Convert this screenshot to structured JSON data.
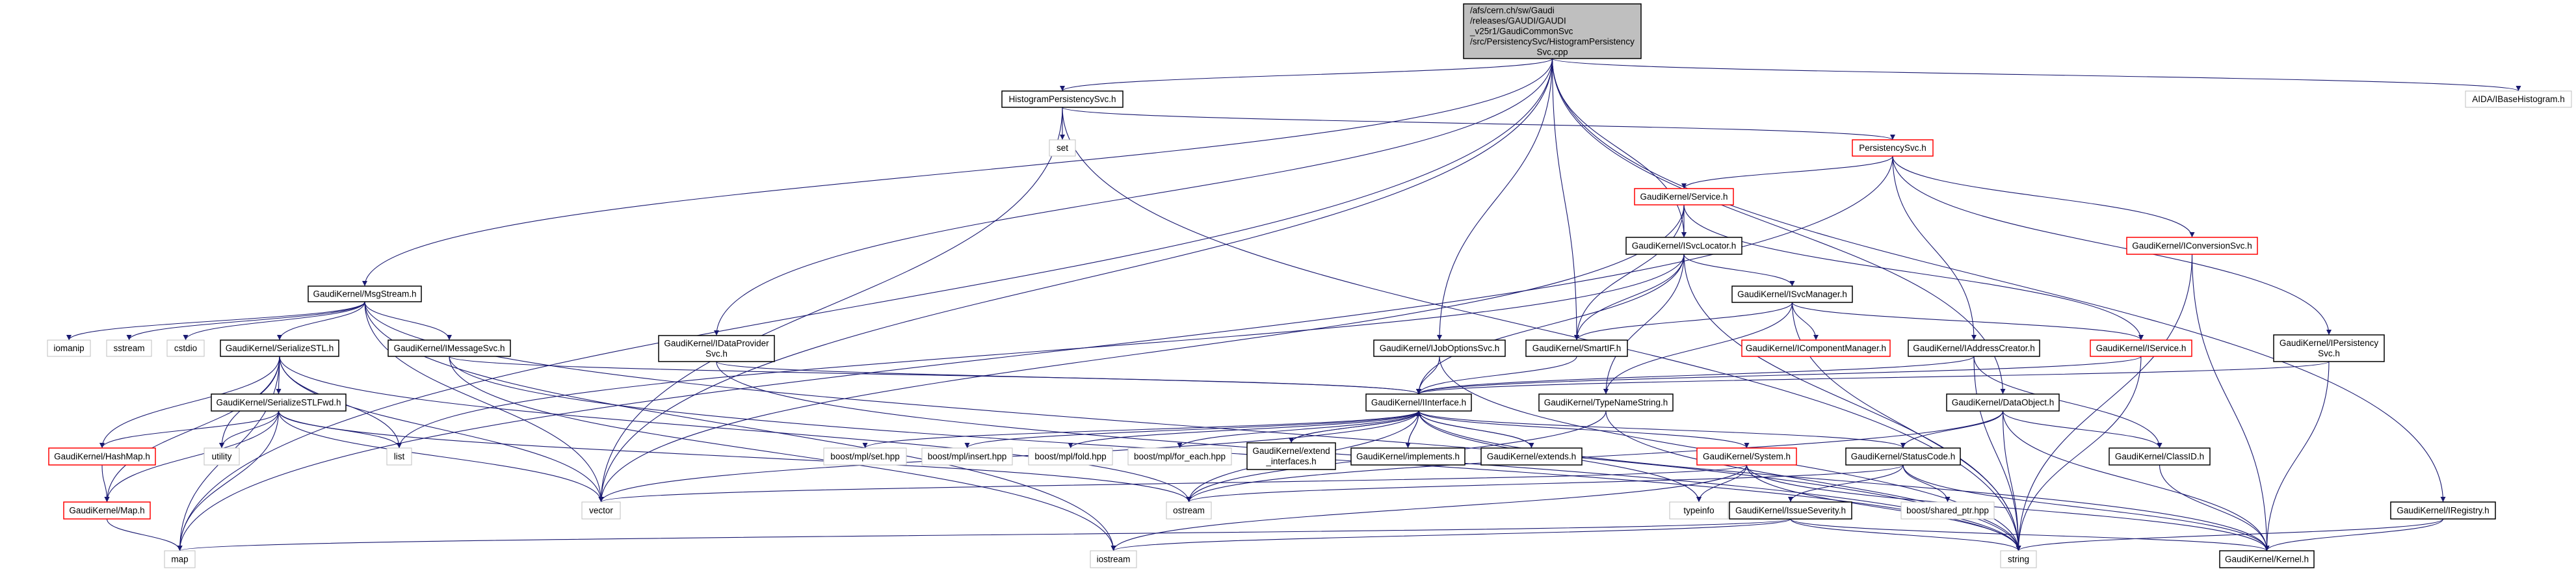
{
  "colors": {
    "edge": "#191970",
    "documented_border": "#000000",
    "external_border": "#bfbfbf",
    "truncated_border": "#ff0000",
    "root_fill": "#bfbfbf"
  },
  "nodes": [
    {
      "id": "root",
      "kind": "root",
      "lines": [
        "/afs/cern.ch/sw/Gaudi",
        "/releases/GAUDI/GAUDI",
        "_v25r1/GaudiCommonSvc",
        "/src/PersistencySvc/HistogramPersistency",
        "Svc.cpp"
      ]
    },
    {
      "id": "hps",
      "kind": "doc",
      "lines": [
        "HistogramPersistencySvc.h"
      ]
    },
    {
      "id": "aida",
      "kind": "ext",
      "lines": [
        "AIDA/IBaseHistogram.h"
      ]
    },
    {
      "id": "set",
      "kind": "ext",
      "lines": [
        "set"
      ]
    },
    {
      "id": "psvc",
      "kind": "trunc",
      "lines": [
        "PersistencySvc.h"
      ]
    },
    {
      "id": "service",
      "kind": "trunc",
      "lines": [
        "GaudiKernel/Service.h"
      ]
    },
    {
      "id": "svcloc",
      "kind": "doc",
      "lines": [
        "GaudiKernel/ISvcLocator.h"
      ]
    },
    {
      "id": "convsvc",
      "kind": "trunc",
      "lines": [
        "GaudiKernel/IConversionSvc.h"
      ]
    },
    {
      "id": "msgstream",
      "kind": "doc",
      "lines": [
        "GaudiKernel/MsgStream.h"
      ]
    },
    {
      "id": "iomanip",
      "kind": "ext",
      "lines": [
        "iomanip"
      ]
    },
    {
      "id": "sstream",
      "kind": "ext",
      "lines": [
        "sstream"
      ]
    },
    {
      "id": "cstdio",
      "kind": "ext",
      "lines": [
        "cstdio"
      ]
    },
    {
      "id": "sstl",
      "kind": "doc",
      "lines": [
        "GaudiKernel/SerializeSTL.h"
      ]
    },
    {
      "id": "imsg",
      "kind": "doc",
      "lines": [
        "GaudiKernel/IMessageSvc.h"
      ]
    },
    {
      "id": "idp",
      "kind": "doc",
      "lines": [
        "GaudiKernel/IDataProvider",
        "Svc.h"
      ]
    },
    {
      "id": "ijob",
      "kind": "doc",
      "lines": [
        "GaudiKernel/IJobOptionsSvc.h"
      ]
    },
    {
      "id": "smartif",
      "kind": "doc",
      "lines": [
        "GaudiKernel/SmartIF.h"
      ]
    },
    {
      "id": "svcmgr",
      "kind": "doc",
      "lines": [
        "GaudiKernel/ISvcManager.h"
      ]
    },
    {
      "id": "icomp",
      "kind": "trunc",
      "lines": [
        "GaudiKernel/IComponentManager.h"
      ]
    },
    {
      "id": "iaddr",
      "kind": "doc",
      "lines": [
        "GaudiKernel/IAddressCreator.h"
      ]
    },
    {
      "id": "iservice",
      "kind": "trunc",
      "lines": [
        "GaudiKernel/IService.h"
      ]
    },
    {
      "id": "ipers",
      "kind": "doc",
      "lines": [
        "GaudiKernel/IPersistency",
        "Svc.h"
      ]
    },
    {
      "id": "sstlfwd",
      "kind": "doc",
      "lines": [
        "GaudiKernel/SerializeSTLFwd.h"
      ]
    },
    {
      "id": "hashmap",
      "kind": "trunc",
      "lines": [
        "GaudiKernel/HashMap.h"
      ]
    },
    {
      "id": "utility",
      "kind": "ext",
      "lines": [
        "utility"
      ]
    },
    {
      "id": "list",
      "kind": "ext",
      "lines": [
        "list"
      ]
    },
    {
      "id": "map_h",
      "kind": "trunc",
      "lines": [
        "GaudiKernel/Map.h"
      ]
    },
    {
      "id": "vector",
      "kind": "ext",
      "lines": [
        "vector"
      ]
    },
    {
      "id": "map",
      "kind": "ext",
      "lines": [
        "map"
      ]
    },
    {
      "id": "iinterface",
      "kind": "doc",
      "lines": [
        "GaudiKernel/IInterface.h"
      ]
    },
    {
      "id": "mplset",
      "kind": "ext",
      "lines": [
        "boost/mpl/set.hpp"
      ]
    },
    {
      "id": "mplinsert",
      "kind": "ext",
      "lines": [
        "boost/mpl/insert.hpp"
      ]
    },
    {
      "id": "mplfold",
      "kind": "ext",
      "lines": [
        "boost/mpl/fold.hpp"
      ]
    },
    {
      "id": "mplforeach",
      "kind": "ext",
      "lines": [
        "boost/mpl/for_each.hpp"
      ]
    },
    {
      "id": "extif",
      "kind": "doc",
      "lines": [
        "GaudiKernel/extend",
        "_interfaces.h"
      ]
    },
    {
      "id": "impl",
      "kind": "doc",
      "lines": [
        "GaudiKernel/implements.h"
      ]
    },
    {
      "id": "extends",
      "kind": "doc",
      "lines": [
        "GaudiKernel/extends.h"
      ]
    },
    {
      "id": "tns",
      "kind": "doc",
      "lines": [
        "GaudiKernel/TypeNameString.h"
      ]
    },
    {
      "id": "dataobj",
      "kind": "doc",
      "lines": [
        "GaudiKernel/DataObject.h"
      ]
    },
    {
      "id": "system",
      "kind": "trunc",
      "lines": [
        "GaudiKernel/System.h"
      ]
    },
    {
      "id": "statuscode",
      "kind": "doc",
      "lines": [
        "GaudiKernel/StatusCode.h"
      ]
    },
    {
      "id": "classid",
      "kind": "doc",
      "lines": [
        "GaudiKernel/ClassID.h"
      ]
    },
    {
      "id": "ostream",
      "kind": "ext",
      "lines": [
        "ostream"
      ]
    },
    {
      "id": "typeinfo",
      "kind": "ext",
      "lines": [
        "typeinfo"
      ]
    },
    {
      "id": "issue",
      "kind": "doc",
      "lines": [
        "GaudiKernel/IssueSeverity.h"
      ]
    },
    {
      "id": "sharedptr",
      "kind": "ext",
      "lines": [
        "boost/shared_ptr.hpp"
      ]
    },
    {
      "id": "iregistry",
      "kind": "doc",
      "lines": [
        "GaudiKernel/IRegistry.h"
      ]
    },
    {
      "id": "iostream",
      "kind": "ext",
      "lines": [
        "iostream"
      ]
    },
    {
      "id": "string",
      "kind": "ext",
      "lines": [
        "string"
      ]
    },
    {
      "id": "kernel",
      "kind": "doc",
      "lines": [
        "GaudiKernel/Kernel.h"
      ]
    }
  ],
  "edges": [
    [
      "root",
      "hps"
    ],
    [
      "root",
      "msgstream"
    ],
    [
      "root",
      "idp"
    ],
    [
      "root",
      "ijob"
    ],
    [
      "root",
      "smartif"
    ],
    [
      "root",
      "svcloc"
    ],
    [
      "root",
      "dataobj"
    ],
    [
      "root",
      "iregistry"
    ],
    [
      "root",
      "aida"
    ],
    [
      "root",
      "vector"
    ],
    [
      "root",
      "map"
    ],
    [
      "hps",
      "set"
    ],
    [
      "hps",
      "psvc"
    ],
    [
      "hps",
      "vector"
    ],
    [
      "hps",
      "string"
    ],
    [
      "psvc",
      "service"
    ],
    [
      "psvc",
      "convsvc"
    ],
    [
      "psvc",
      "ipers"
    ],
    [
      "psvc",
      "iaddr"
    ],
    [
      "psvc",
      "map"
    ],
    [
      "service",
      "svcloc"
    ],
    [
      "service",
      "smartif"
    ],
    [
      "service",
      "iservice"
    ],
    [
      "service",
      "vector"
    ],
    [
      "svcloc",
      "smartif"
    ],
    [
      "svcloc",
      "iinterface"
    ],
    [
      "svcloc",
      "tns"
    ],
    [
      "svcloc",
      "svcmgr"
    ],
    [
      "svcloc",
      "list"
    ],
    [
      "svcloc",
      "string"
    ],
    [
      "svcmgr",
      "smartif"
    ],
    [
      "svcmgr",
      "icomp"
    ],
    [
      "svcmgr",
      "tns"
    ],
    [
      "svcmgr",
      "iservice"
    ],
    [
      "svcmgr",
      "string"
    ],
    [
      "msgstream",
      "iomanip"
    ],
    [
      "msgstream",
      "sstream"
    ],
    [
      "msgstream",
      "cstdio"
    ],
    [
      "msgstream",
      "sstl"
    ],
    [
      "msgstream",
      "imsg"
    ],
    [
      "msgstream",
      "vector"
    ],
    [
      "msgstream",
      "string"
    ],
    [
      "msgstream",
      "iostream"
    ],
    [
      "sstl",
      "sstlfwd"
    ],
    [
      "sstl",
      "hashmap"
    ],
    [
      "sstl",
      "map_h"
    ],
    [
      "sstl",
      "utility"
    ],
    [
      "sstl",
      "map"
    ],
    [
      "sstl",
      "list"
    ],
    [
      "sstl",
      "vector"
    ],
    [
      "sstl",
      "ostream"
    ],
    [
      "sstlfwd",
      "hashmap"
    ],
    [
      "sstlfwd",
      "map_h"
    ],
    [
      "sstlfwd",
      "utility"
    ],
    [
      "sstlfwd",
      "list"
    ],
    [
      "sstlfwd",
      "map"
    ],
    [
      "sstlfwd",
      "vector"
    ],
    [
      "sstlfwd",
      "ostream"
    ],
    [
      "hashmap",
      "map_h"
    ],
    [
      "map_h",
      "map"
    ],
    [
      "imsg",
      "iinterface"
    ],
    [
      "imsg",
      "string"
    ],
    [
      "imsg",
      "iostream"
    ],
    [
      "idp",
      "iinterface"
    ],
    [
      "idp",
      "string"
    ],
    [
      "ijob",
      "iinterface"
    ],
    [
      "ijob",
      "string"
    ],
    [
      "smartif",
      "iinterface"
    ],
    [
      "iinterface",
      "mplset"
    ],
    [
      "iinterface",
      "mplinsert"
    ],
    [
      "iinterface",
      "mplfold"
    ],
    [
      "iinterface",
      "mplforeach"
    ],
    [
      "iinterface",
      "extif"
    ],
    [
      "iinterface",
      "impl"
    ],
    [
      "iinterface",
      "extends"
    ],
    [
      "iinterface",
      "system"
    ],
    [
      "iinterface",
      "statuscode"
    ],
    [
      "iinterface",
      "kernel"
    ],
    [
      "iinterface",
      "ostream"
    ],
    [
      "iinterface",
      "typeinfo"
    ],
    [
      "iinterface",
      "vector"
    ],
    [
      "extif",
      "iinterface"
    ],
    [
      "impl",
      "iinterface"
    ],
    [
      "extends",
      "iinterface"
    ],
    [
      "tns",
      "string"
    ],
    [
      "tns",
      "ostream"
    ],
    [
      "system",
      "typeinfo"
    ],
    [
      "system",
      "string"
    ],
    [
      "system",
      "kernel"
    ],
    [
      "system",
      "vector"
    ],
    [
      "system",
      "iostream"
    ],
    [
      "statuscode",
      "issue"
    ],
    [
      "statuscode",
      "sharedptr"
    ],
    [
      "statuscode",
      "kernel"
    ],
    [
      "statuscode",
      "ostream"
    ],
    [
      "issue",
      "map"
    ],
    [
      "issue",
      "iostream"
    ],
    [
      "issue",
      "string"
    ],
    [
      "issue",
      "kernel"
    ],
    [
      "dataobj",
      "classid"
    ],
    [
      "dataobj",
      "statuscode"
    ],
    [
      "dataobj",
      "string"
    ],
    [
      "dataobj",
      "ostream"
    ],
    [
      "dataobj",
      "kernel"
    ],
    [
      "iaddr",
      "iinterface"
    ],
    [
      "iaddr",
      "classid"
    ],
    [
      "iaddr",
      "string"
    ],
    [
      "iservice",
      "iinterface"
    ],
    [
      "iservice",
      "string"
    ],
    [
      "convsvc",
      "string"
    ],
    [
      "convsvc",
      "kernel"
    ],
    [
      "ipers",
      "iinterface"
    ],
    [
      "ipers",
      "kernel"
    ],
    [
      "classid",
      "kernel"
    ],
    [
      "iregistry",
      "kernel"
    ],
    [
      "iregistry",
      "string"
    ]
  ]
}
